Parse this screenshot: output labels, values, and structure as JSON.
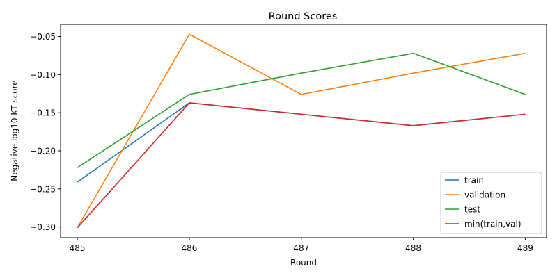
{
  "chart_data": {
    "type": "line",
    "title": "Round Scores",
    "xlabel": "Round",
    "ylabel": "Negative log10 KT score",
    "x": [
      485,
      486,
      487,
      488,
      489
    ],
    "xticks": [
      "485",
      "486",
      "487",
      "488",
      "489"
    ],
    "yticks": [
      -0.3,
      -0.25,
      -0.2,
      -0.15,
      -0.1,
      -0.05
    ],
    "ytick_labels": [
      "−0.30",
      "−0.25",
      "−0.20",
      "−0.15",
      "−0.10",
      "−0.05"
    ],
    "xlim": [
      484.85,
      489.19
    ],
    "ylim": [
      -0.314,
      -0.034
    ],
    "grid": false,
    "legend_position": "lower-right",
    "series": [
      {
        "name": "train",
        "color": "#1f77b4",
        "values": [
          -0.241,
          -0.137,
          -0.152,
          -0.167,
          -0.152
        ]
      },
      {
        "name": "validation",
        "color": "#ff7f0e",
        "values": [
          -0.301,
          -0.047,
          -0.126,
          -0.098,
          -0.072
        ]
      },
      {
        "name": "test",
        "color": "#2ca02c",
        "values": [
          -0.222,
          -0.126,
          -0.098,
          -0.072,
          -0.126
        ]
      },
      {
        "name": "min(train,val)",
        "color": "#d62728",
        "values": [
          -0.301,
          -0.137,
          -0.152,
          -0.167,
          -0.152
        ]
      }
    ]
  }
}
